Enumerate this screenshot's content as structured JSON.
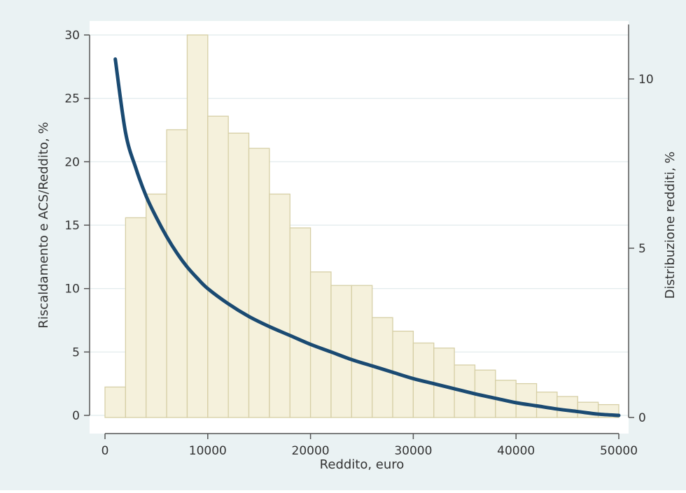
{
  "chart_data": {
    "type": "bar",
    "title": "",
    "xlabel": "Reddito, euro",
    "ylabel": "Riscaldamento e ACS/Reddito, %",
    "y2label": "Distribuzione redditi, %",
    "xlim": [
      0,
      50000
    ],
    "ylim": [
      0,
      30
    ],
    "y2lim": [
      0,
      11.3
    ],
    "x_ticks": [
      0,
      10000,
      20000,
      30000,
      40000,
      50000
    ],
    "y_ticks": [
      0,
      5,
      10,
      15,
      20,
      25,
      30
    ],
    "y2_ticks": [
      0,
      5,
      10
    ],
    "grid": true,
    "legend": "none",
    "colors": {
      "plot_background": "#ffffff",
      "outer_background": "#eaf2f3",
      "bar_fill": "#f5f1dc",
      "bar_stroke": "#d6cfa6",
      "line": "#1a4a72",
      "grid": "#dfe9ec",
      "axis": "#555555"
    },
    "series": [
      {
        "type": "bar",
        "axis": "right",
        "bin_width": 2000,
        "x": [
          1000,
          3000,
          5000,
          7000,
          9000,
          11000,
          13000,
          15000,
          17000,
          19000,
          21000,
          23000,
          25000,
          27000,
          29000,
          31000,
          33000,
          35000,
          37000,
          39000,
          41000,
          43000,
          45000,
          47000,
          49000
        ],
        "values": [
          0.9,
          5.9,
          6.6,
          8.5,
          11.3,
          8.9,
          8.4,
          7.95,
          6.6,
          5.6,
          4.3,
          3.9,
          3.9,
          2.95,
          2.55,
          2.2,
          2.05,
          1.55,
          1.4,
          1.1,
          1.0,
          0.75,
          0.62,
          0.45,
          0.38
        ]
      },
      {
        "type": "line",
        "axis": "left",
        "x": [
          1000,
          2000,
          3000,
          4000,
          5000,
          6000,
          7000,
          8000,
          9000,
          10000,
          12000,
          14000,
          16000,
          18000,
          20000,
          22000,
          24000,
          26000,
          28000,
          30000,
          32000,
          34000,
          36000,
          38000,
          40000,
          42000,
          44000,
          46000,
          48000,
          50000
        ],
        "values": [
          28.1,
          22.3,
          19.5,
          17.3,
          15.6,
          14.1,
          12.8,
          11.7,
          10.8,
          10.0,
          8.8,
          7.8,
          7.0,
          6.3,
          5.6,
          5.0,
          4.4,
          3.9,
          3.4,
          2.9,
          2.5,
          2.1,
          1.7,
          1.35,
          1.0,
          0.75,
          0.5,
          0.3,
          0.1,
          0.0
        ]
      }
    ]
  }
}
